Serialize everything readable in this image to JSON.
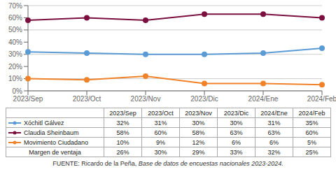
{
  "chart_data": {
    "type": "line",
    "categories": [
      "2023/Sep",
      "2023/Oct",
      "2023/Nov",
      "2023/Dic",
      "2024/Ene",
      "2024/Feb"
    ],
    "series": [
      {
        "name": "Xóchitl Gálvez",
        "color": "#5b9bd5",
        "marker": "circle",
        "values": [
          32,
          31,
          30,
          30,
          31,
          35
        ],
        "value_labels": [
          "32%",
          "31%",
          "30%",
          "30%",
          "31%",
          "35%"
        ]
      },
      {
        "name": "Claudia Sheinbaum",
        "color": "#7b1040",
        "marker": "circle",
        "values": [
          58,
          60,
          58,
          63,
          63,
          60
        ],
        "value_labels": [
          "58%",
          "60%",
          "58%",
          "63%",
          "63%",
          "60%"
        ]
      },
      {
        "name": "Movimiento Ciudadano",
        "color": "#f0822a",
        "marker": "circle",
        "values": [
          10,
          9,
          12,
          6,
          6,
          5
        ],
        "value_labels": [
          "10%",
          "9%",
          "12%",
          "6%",
          "6%",
          "5%"
        ]
      }
    ],
    "ylim": [
      0,
      70
    ],
    "yticks": [
      {
        "value": 0,
        "label": "0%"
      },
      {
        "value": 10,
        "label": "10%"
      },
      {
        "value": 20,
        "label": "20%"
      },
      {
        "value": 30,
        "label": "30%"
      },
      {
        "value": 40,
        "label": "40%"
      },
      {
        "value": 50,
        "label": "50%"
      },
      {
        "value": 60,
        "label": "60%"
      },
      {
        "value": 70,
        "label": "70%"
      }
    ],
    "grid": true,
    "table_rows": [
      {
        "name": "Margen de ventaja",
        "values": [
          26,
          30,
          29,
          33,
          32,
          25
        ],
        "value_labels": [
          "26%",
          "30%",
          "29%",
          "33%",
          "32%",
          "25%"
        ]
      }
    ],
    "annotations": [
      {
        "text": "FUENTE: Ricardo de la Peña, ",
        "style": "normal"
      },
      {
        "text": "Base de datos de encuestas nacionales 2023-2024.",
        "style": "italic"
      }
    ]
  }
}
